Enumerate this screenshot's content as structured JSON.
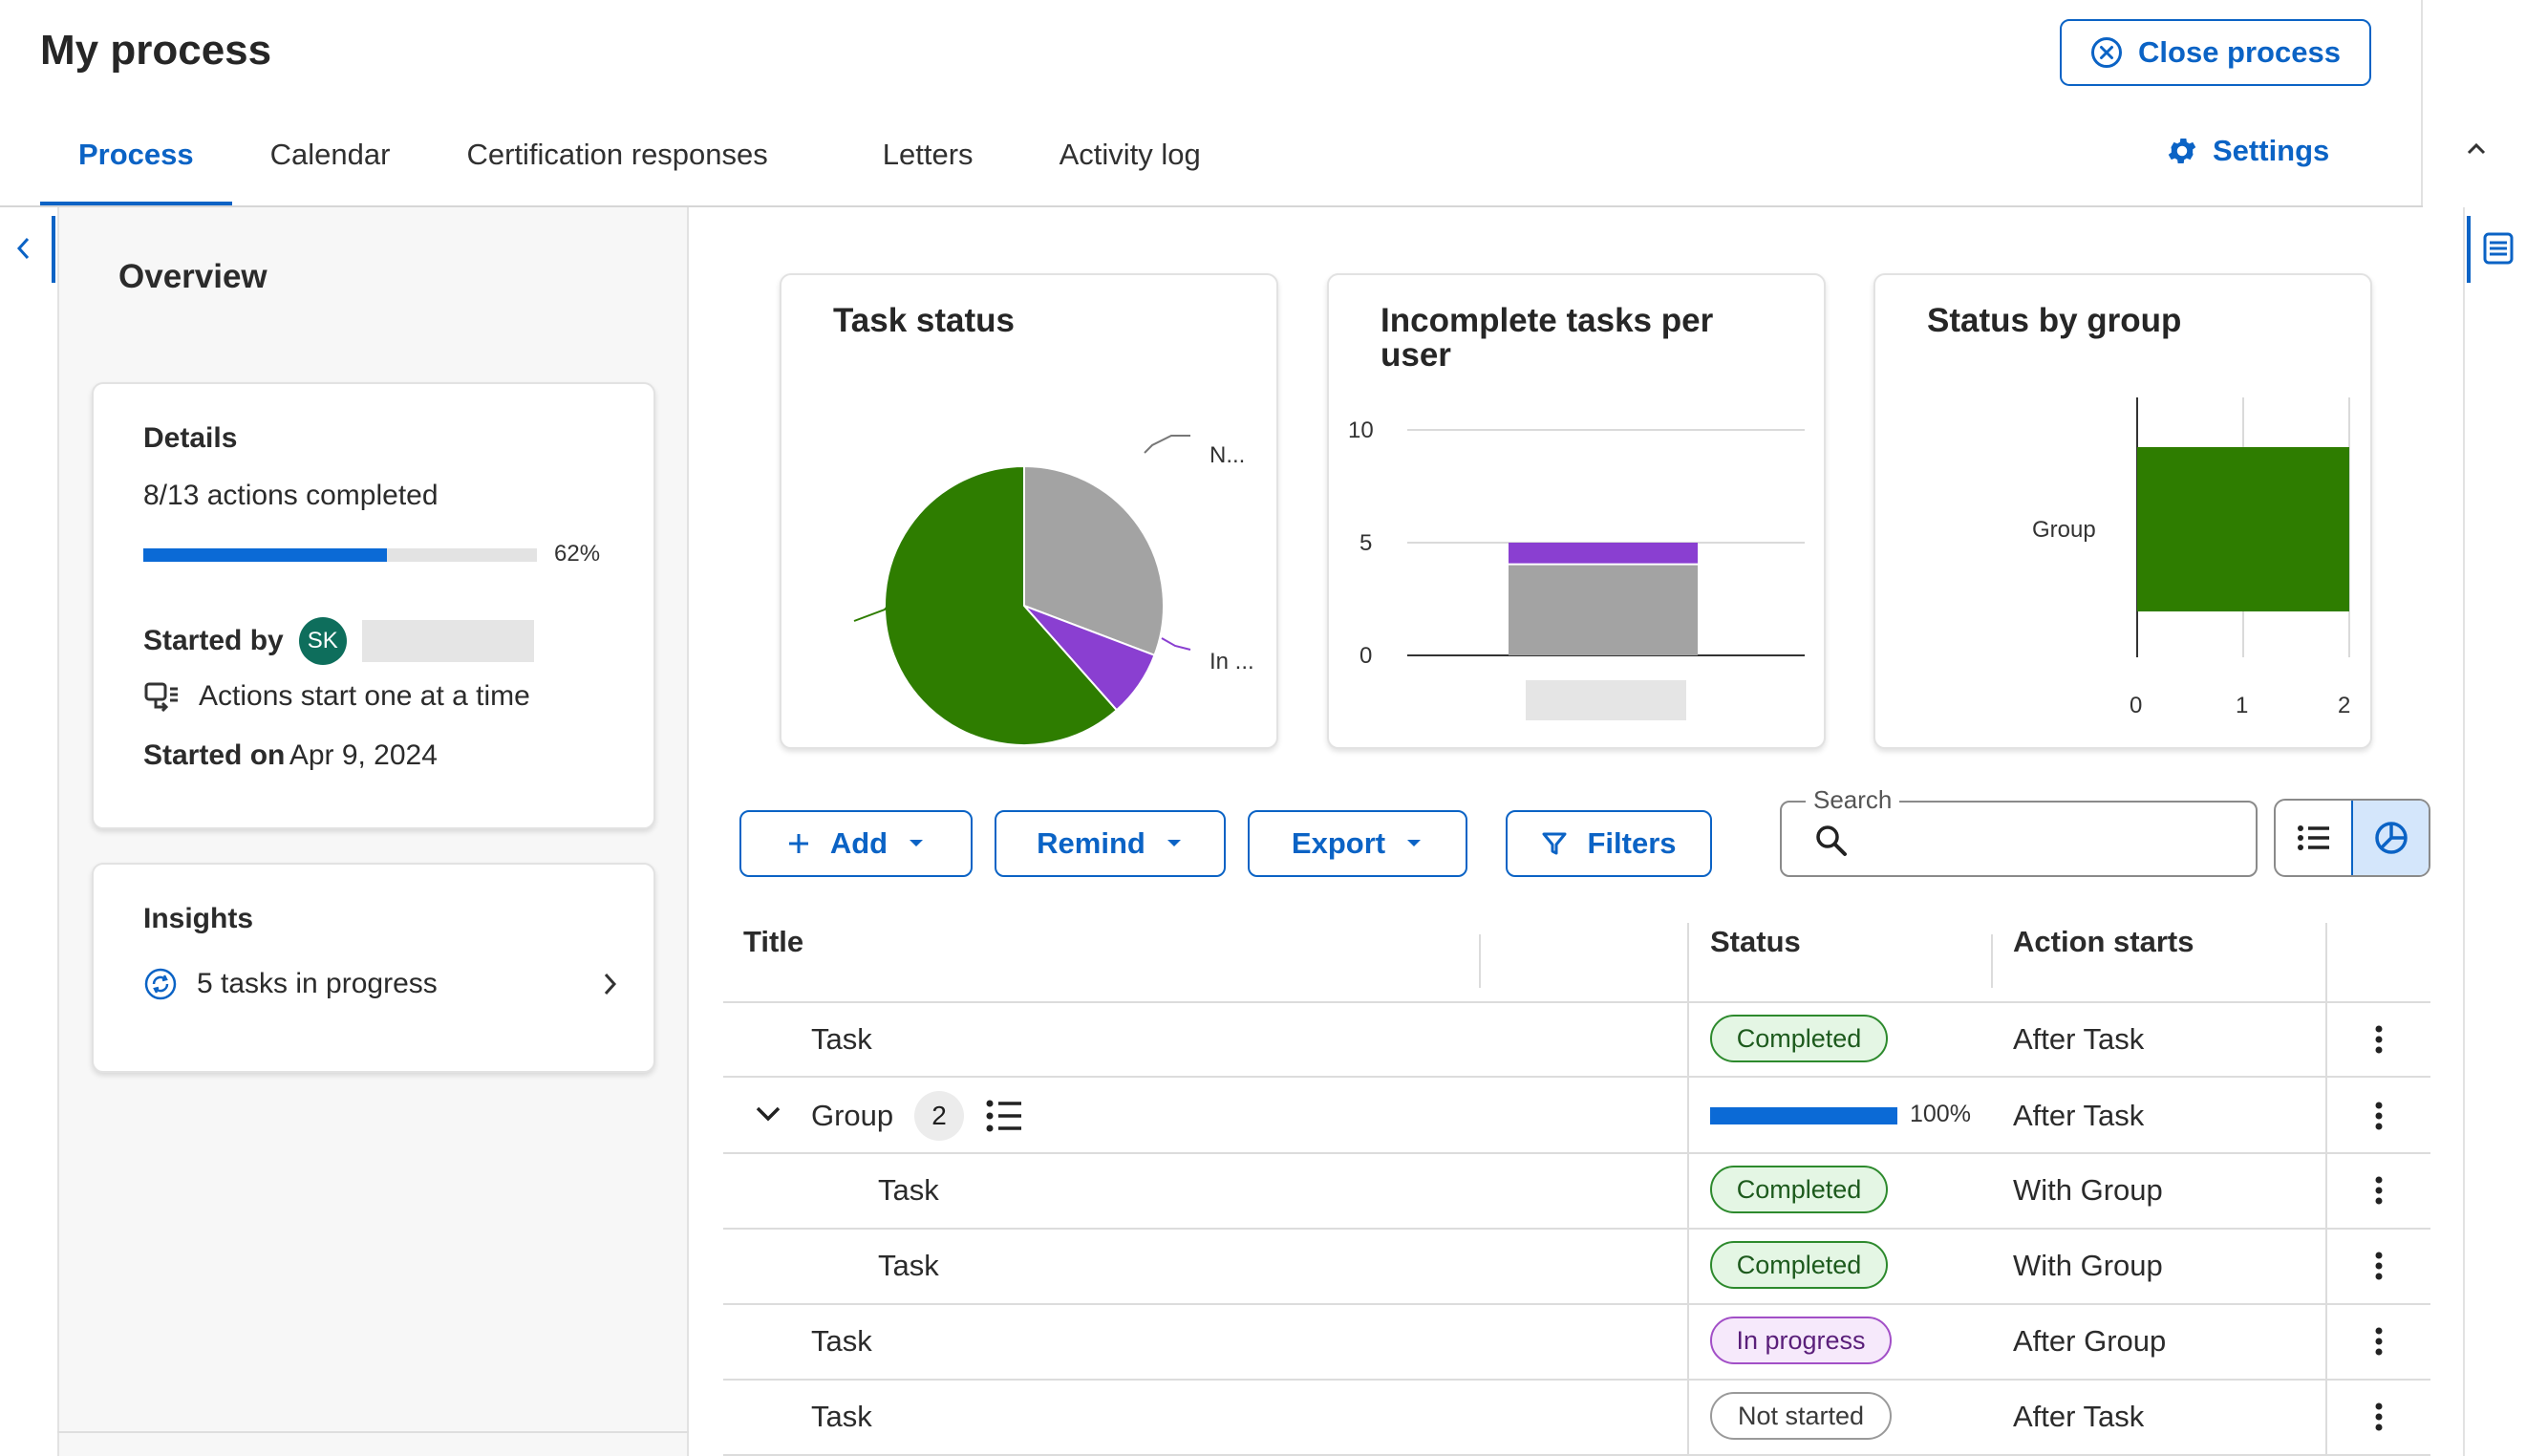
{
  "header": {
    "title": "My process",
    "close_label": "Close process",
    "settings_label": "Settings",
    "tabs": [
      {
        "label": "Process",
        "active": true
      },
      {
        "label": "Calendar",
        "active": false
      },
      {
        "label": "Certification responses",
        "active": false
      },
      {
        "label": "Letters",
        "active": false
      },
      {
        "label": "Activity log",
        "active": false
      }
    ]
  },
  "sidebar": {
    "title": "Overview",
    "details": {
      "heading": "Details",
      "actions_completed": "8/13 actions completed",
      "progress_percent": "62%",
      "progress_value": 0.62,
      "started_by_label": "Started by",
      "avatar_initials": "SK",
      "mode_text": "Actions start one at a time",
      "started_on_label": "Started on",
      "started_on_value": "Apr 9, 2024"
    },
    "insights": {
      "heading": "Insights",
      "item_text": "5 tasks in progress"
    }
  },
  "charts": {
    "task_status_title": "Task status",
    "incomplete_title": "Incomplete tasks per user",
    "status_group_title": "Status by group"
  },
  "chart_data": [
    {
      "type": "pie",
      "title": "Task status",
      "slices": [
        {
          "label": "N...",
          "value": 4,
          "color": "#a3a3a3"
        },
        {
          "label": "In ...",
          "value": 1,
          "color": "#8a3fd1"
        },
        {
          "label": "",
          "value": 8,
          "color": "#2e7d00"
        }
      ]
    },
    {
      "type": "bar",
      "title": "Incomplete tasks per user",
      "categories": [
        ""
      ],
      "series": [
        {
          "values": [
            4
          ],
          "color": "#a3a3a3"
        },
        {
          "values": [
            1
          ],
          "color": "#8a3fd1"
        }
      ],
      "stacked": true,
      "yticks": [
        "10",
        "5",
        "0"
      ],
      "ylim": [
        0,
        10
      ]
    },
    {
      "type": "bar",
      "orientation": "horizontal",
      "title": "Status by group",
      "categories": [
        "Group"
      ],
      "values": [
        2
      ],
      "color": "#2e7d00",
      "xticks": [
        "0",
        "1",
        "2"
      ],
      "xlim": [
        0,
        2
      ]
    }
  ],
  "toolbar": {
    "add_label": "Add",
    "remind_label": "Remind",
    "export_label": "Export",
    "filters_label": "Filters",
    "search_label": "Search",
    "search_value": ""
  },
  "table": {
    "columns": [
      "Title",
      "Status",
      "Action starts"
    ],
    "rows": [
      {
        "title": "Task",
        "status": "Completed",
        "starts": "After Task"
      },
      {
        "title": "Group",
        "count": "2",
        "progress": "100%",
        "progress_value": 1.0,
        "starts": "After Task"
      },
      {
        "title": "Task",
        "status": "Completed",
        "starts": "With Group"
      },
      {
        "title": "Task",
        "status": "Completed",
        "starts": "With Group"
      },
      {
        "title": "Task",
        "status": "In progress",
        "starts": "After Group"
      },
      {
        "title": "Task",
        "status": "Not started",
        "starts": "After Task"
      }
    ]
  },
  "colors": {
    "accent": "#0b63c5",
    "completed": "#2e7d00",
    "in_progress": "#8a3fd1",
    "not_started": "#a3a3a3"
  }
}
